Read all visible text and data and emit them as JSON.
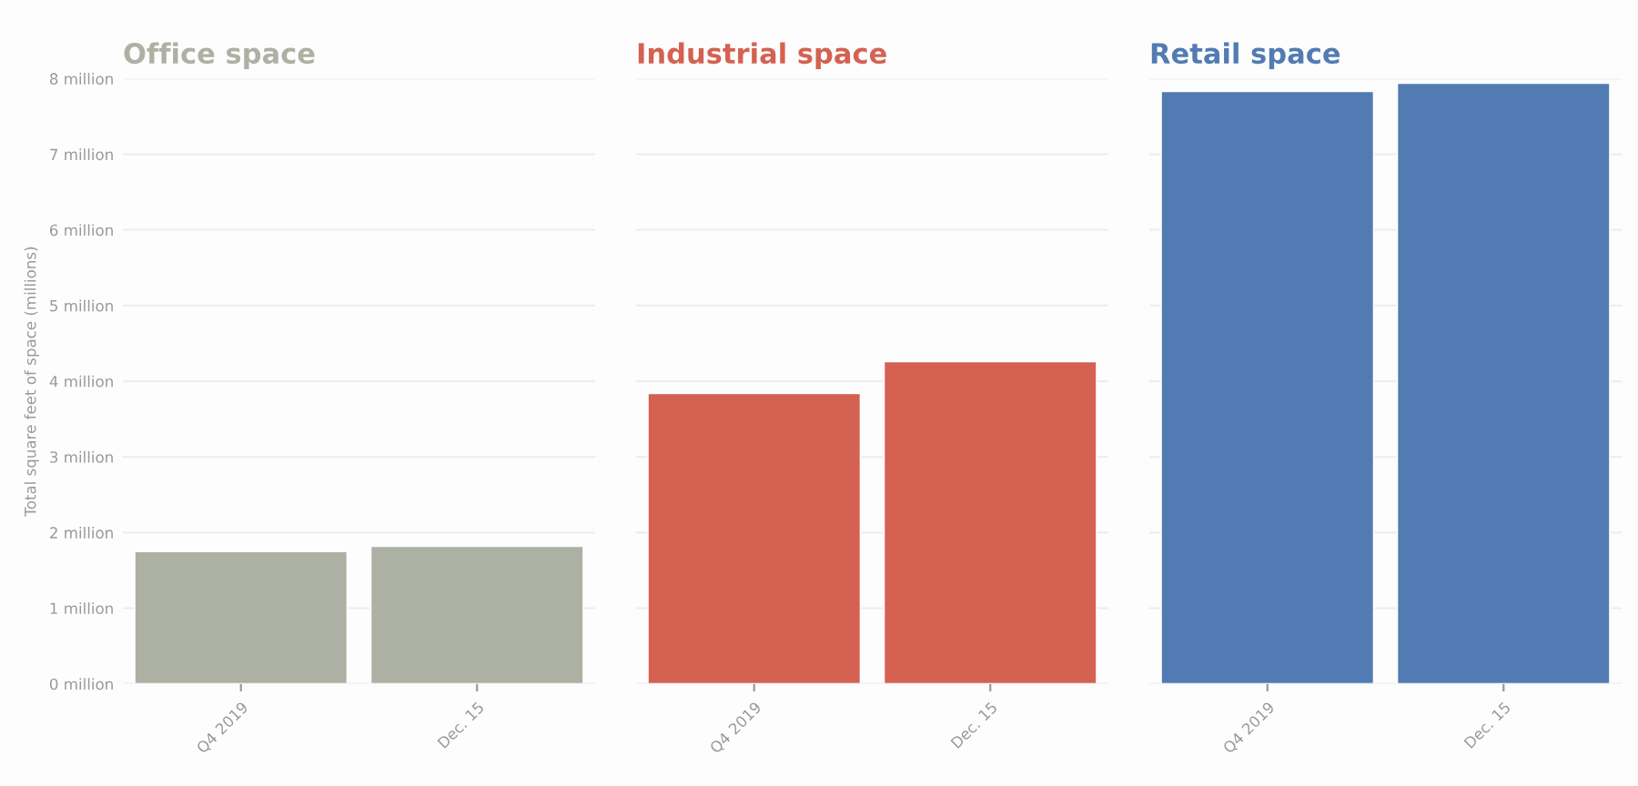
{
  "chart_data": [
    {
      "type": "bar",
      "title": "Office space",
      "ylabel": "Total square feet of space (millions)",
      "categories": [
        "Q4 2019",
        "Dec. 15"
      ],
      "series": [
        {
          "color": "#adb1a3",
          "values": [
            1.75,
            1.82
          ]
        }
      ],
      "ylim": [
        0,
        8
      ],
      "yticks": [
        {
          "value": 0,
          "label": "0 million"
        },
        {
          "value": 1,
          "label": "1 million"
        },
        {
          "value": 2,
          "label": "2 million"
        },
        {
          "value": 3,
          "label": "3 million"
        },
        {
          "value": 4,
          "label": "4 million"
        },
        {
          "value": 5,
          "label": "5 million"
        },
        {
          "value": 6,
          "label": "6 million"
        },
        {
          "value": 7,
          "label": "7 million"
        },
        {
          "value": 8,
          "label": "8 million"
        }
      ],
      "grid": "y",
      "legend": false
    },
    {
      "type": "bar",
      "title": "Industrial space",
      "categories": [
        "Q4 2019",
        "Dec. 15"
      ],
      "series": [
        {
          "color": "#d46151",
          "values": [
            3.84,
            4.26
          ]
        }
      ],
      "ylim": [
        0,
        8
      ],
      "yticks": [
        {
          "value": 0,
          "label": null
        },
        {
          "value": 1,
          "label": null
        },
        {
          "value": 2,
          "label": null
        },
        {
          "value": 3,
          "label": null
        },
        {
          "value": 4,
          "label": null
        },
        {
          "value": 5,
          "label": null
        },
        {
          "value": 6,
          "label": null
        },
        {
          "value": 7,
          "label": null
        },
        {
          "value": 8,
          "label": null
        }
      ],
      "grid": "y",
      "legend": false,
      "tick_labels": "x"
    },
    {
      "type": "bar",
      "title": "Retail space",
      "categories": [
        "Q4 2019",
        "Dec. 15"
      ],
      "series": [
        {
          "color": "#527bb3",
          "values": [
            7.83,
            7.94
          ]
        }
      ],
      "ylim": [
        0,
        8
      ],
      "yticks": [
        {
          "value": 0,
          "label": null
        },
        {
          "value": 1,
          "label": null
        },
        {
          "value": 2,
          "label": null
        },
        {
          "value": 3,
          "label": null
        },
        {
          "value": 4,
          "label": null
        },
        {
          "value": 5,
          "label": null
        },
        {
          "value": 6,
          "label": null
        },
        {
          "value": 7,
          "label": null
        },
        {
          "value": 8,
          "label": null
        }
      ],
      "grid": "y",
      "legend": false,
      "tick_labels": "x"
    }
  ]
}
